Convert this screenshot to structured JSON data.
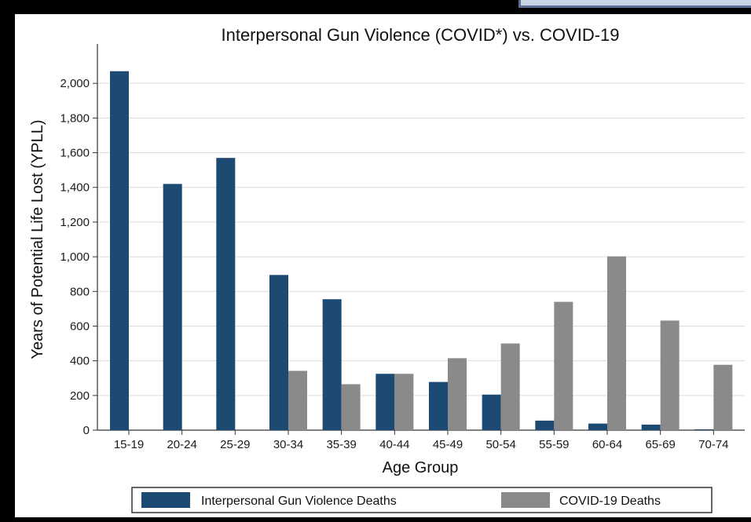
{
  "chart_data": {
    "type": "bar",
    "title": "Interpersonal Gun Violence (COVID*) vs. COVID-19",
    "xlabel": "Age Group",
    "ylabel": "Years of Potential Life Lost (YPLL)",
    "ylim": [
      0,
      2200
    ],
    "yticks": [
      0,
      200,
      400,
      600,
      800,
      1000,
      1200,
      1400,
      1600,
      1800,
      2000
    ],
    "ytick_labels": [
      "0",
      "200",
      "400",
      "600",
      "800",
      "1,000",
      "1,200",
      "1,400",
      "1,600",
      "1,800",
      "2,000"
    ],
    "grid": true,
    "legend_position": "bottom",
    "categories": [
      "15-19",
      "20-24",
      "25-29",
      "30-34",
      "35-39",
      "40-44",
      "45-49",
      "50-54",
      "55-59",
      "60-64",
      "65-69",
      "70-74"
    ],
    "series": [
      {
        "name": "Interpersonal Gun Violence Deaths",
        "color": "#1d4a72",
        "values": [
          2070,
          1420,
          1570,
          895,
          755,
          325,
          278,
          205,
          55,
          38,
          32,
          5
        ]
      },
      {
        "name": "COVID-19 Deaths",
        "color": "#8a8a8a",
        "values": [
          0,
          0,
          0,
          342,
          265,
          325,
          415,
          500,
          740,
          1002,
          632,
          377
        ]
      }
    ]
  }
}
